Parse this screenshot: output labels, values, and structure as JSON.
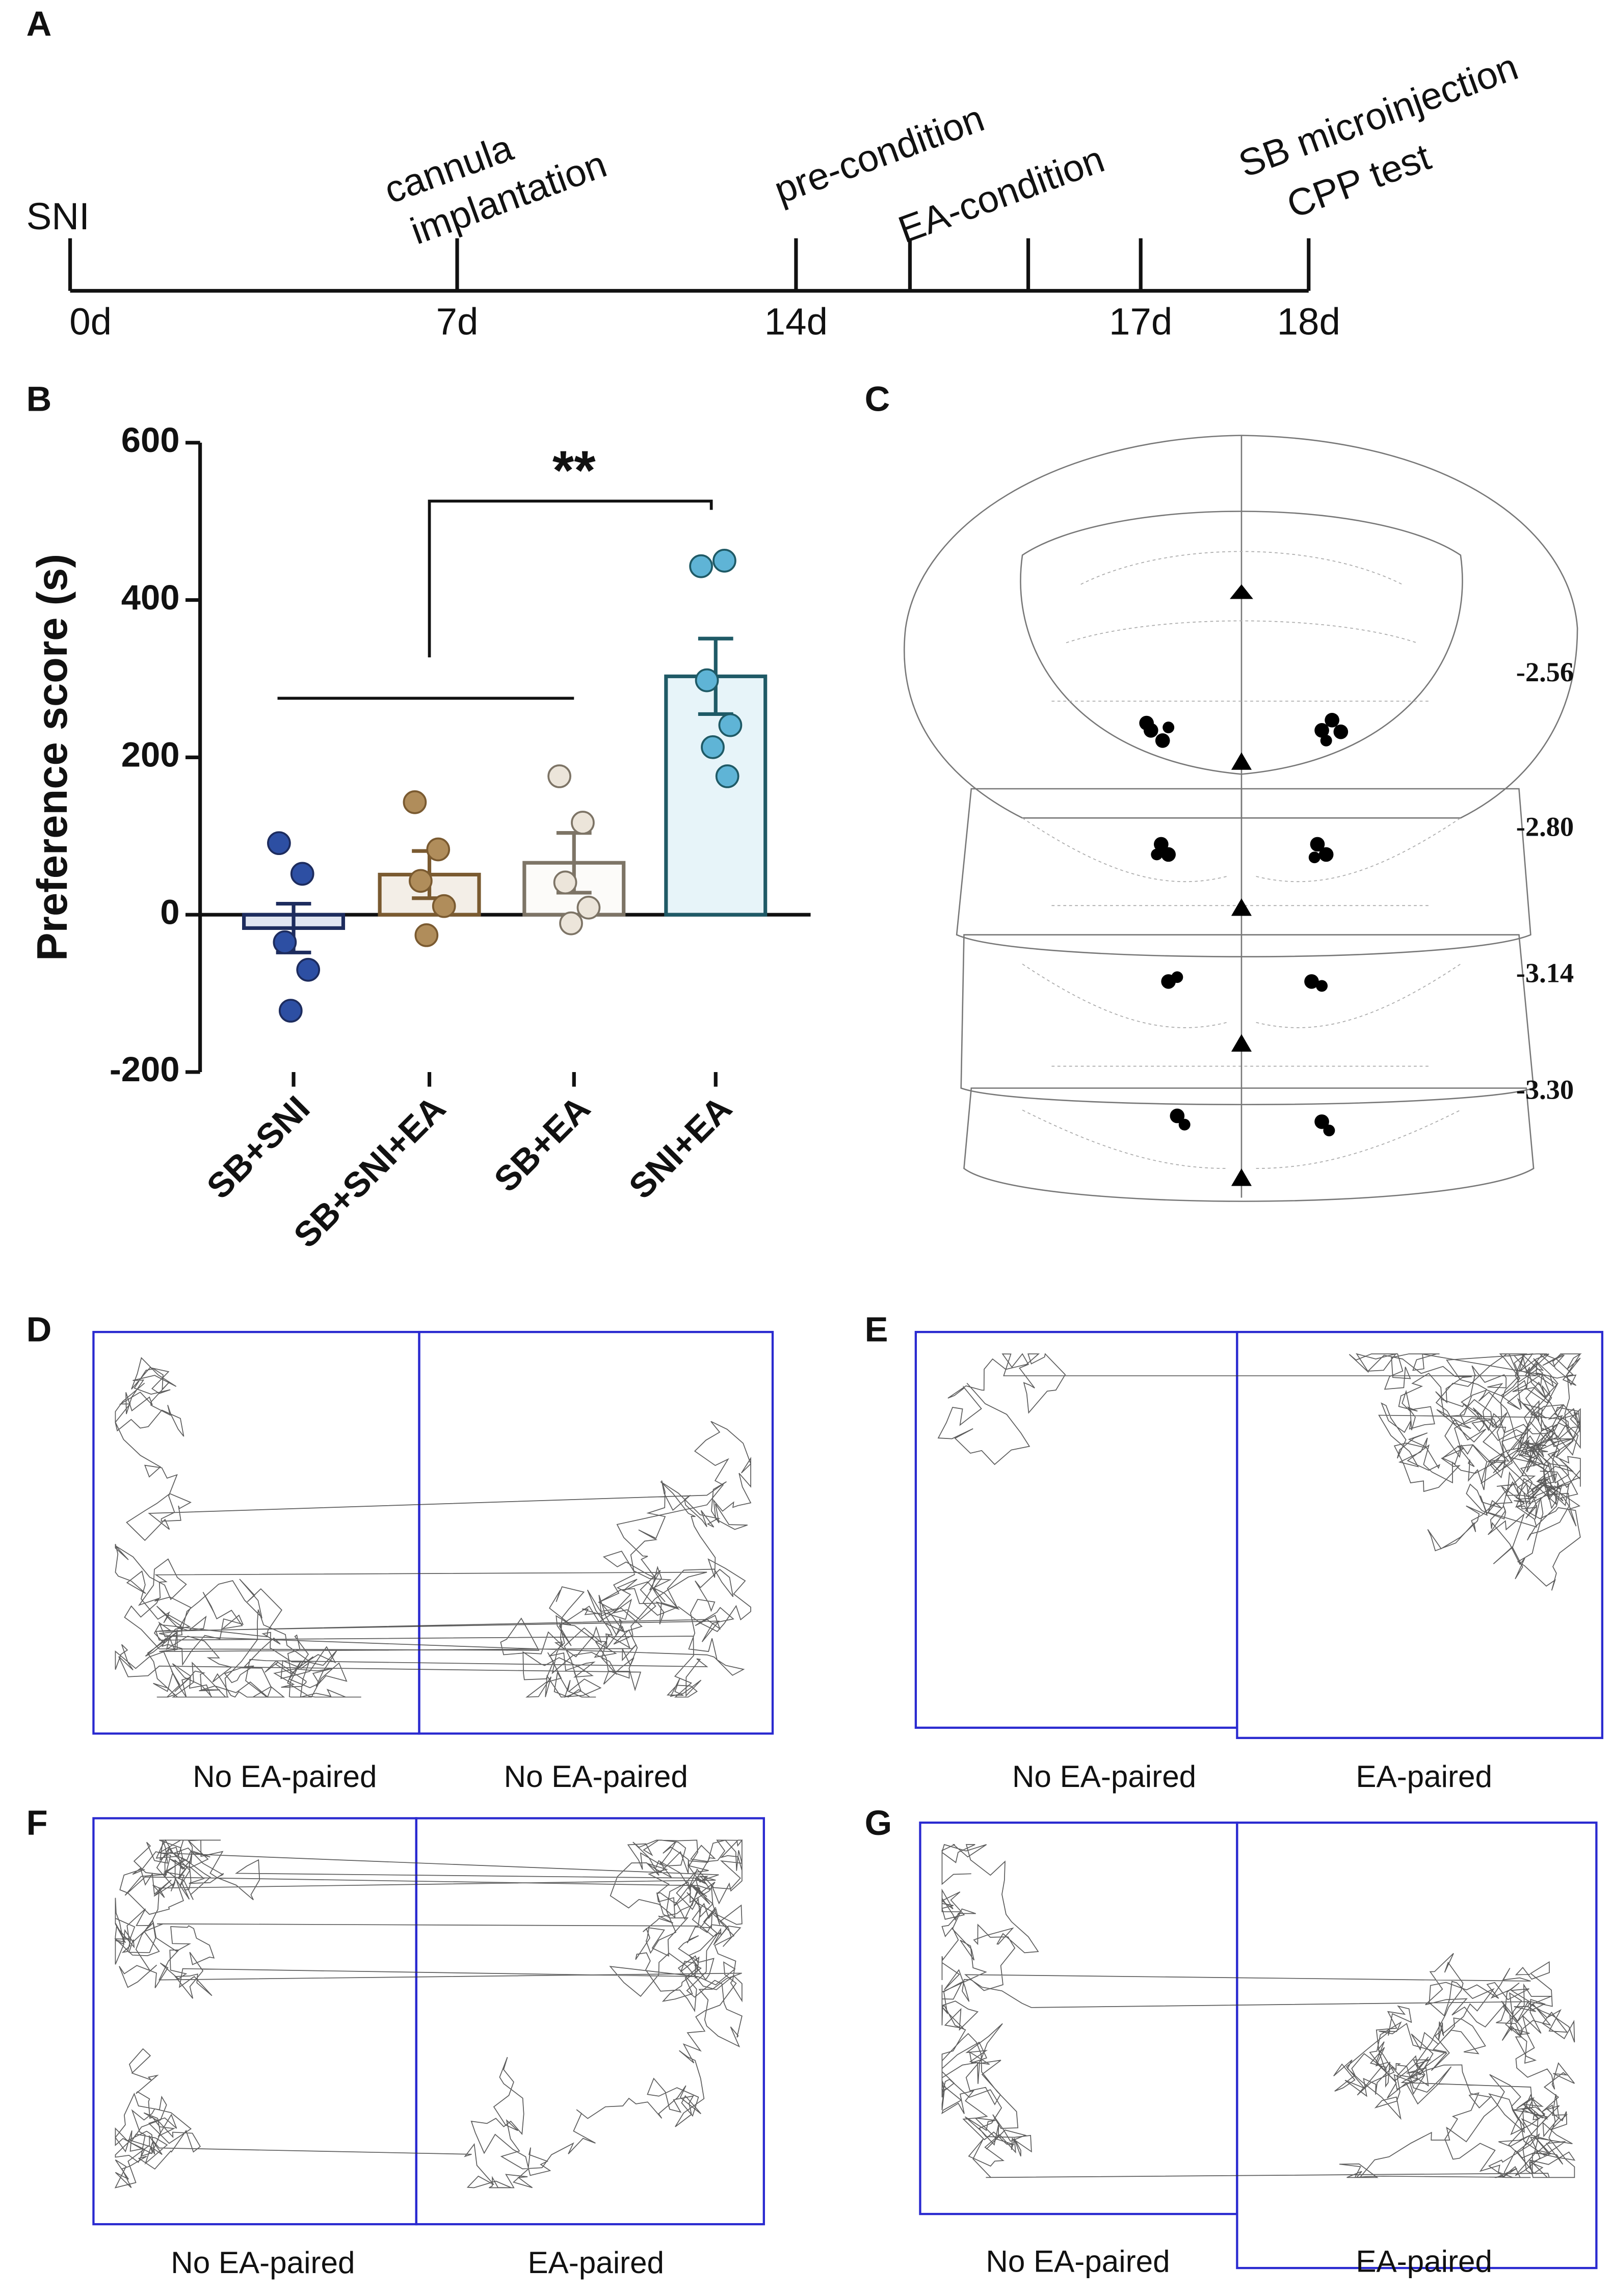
{
  "panel_labels": [
    "A",
    "B",
    "C",
    "D",
    "E",
    "F",
    "G"
  ],
  "timeline": {
    "ticks": [
      "0d",
      "7d",
      "14d",
      null,
      null,
      "17d",
      "18d"
    ],
    "events": [
      {
        "lines": [
          "SNI"
        ]
      },
      {
        "lines": [
          "cannula",
          "implantation"
        ]
      },
      {
        "lines": [
          "pre-condition"
        ]
      },
      {
        "lines": [
          "EA-condition"
        ]
      },
      {
        "lines": [
          "SB microinjection",
          "CPP test"
        ]
      }
    ]
  },
  "chart_data": {
    "type": "bar",
    "y_label": "Preference score (s)",
    "categories": [
      "SB+SNI",
      "SB+SNI+EA",
      "SB+EA",
      "SNI+EA"
    ],
    "values": [
      -17,
      51,
      66,
      303
    ],
    "errors": [
      31,
      30,
      38,
      48
    ],
    "points": [
      [
        91,
        52,
        -35,
        -70,
        -122
      ],
      [
        143,
        83,
        43,
        11,
        -26
      ],
      [
        176,
        117,
        41,
        9,
        -11
      ],
      [
        443,
        450,
        298,
        241,
        213,
        176
      ]
    ],
    "colors": [
      "#2d4fa3",
      "#b08d5b",
      "#ece5da",
      "#5fb4d6"
    ],
    "edge_colors": [
      "#1d2c5e",
      "#7a5a30",
      "#7d7466",
      "#1f5a66"
    ],
    "point_colors": [
      "#2d4fa3",
      "#b08d5b",
      "#ece5da",
      "#5fb4d6"
    ],
    "ylim": [
      -200,
      600
    ],
    "yticks": [
      -200,
      0,
      200,
      400,
      600
    ],
    "significance": "**"
  },
  "atlas": {
    "levels": [
      "-2.56",
      "-2.80",
      "-3.14",
      "-3.30"
    ]
  },
  "tracks": [
    {
      "left": "No EA-paired",
      "right": "No EA-paired"
    },
    {
      "left": "No EA-paired",
      "right": "EA-paired"
    },
    {
      "left": "No EA-paired",
      "right": "EA-paired"
    },
    {
      "left": "No EA-paired",
      "right": "EA-paired"
    }
  ]
}
